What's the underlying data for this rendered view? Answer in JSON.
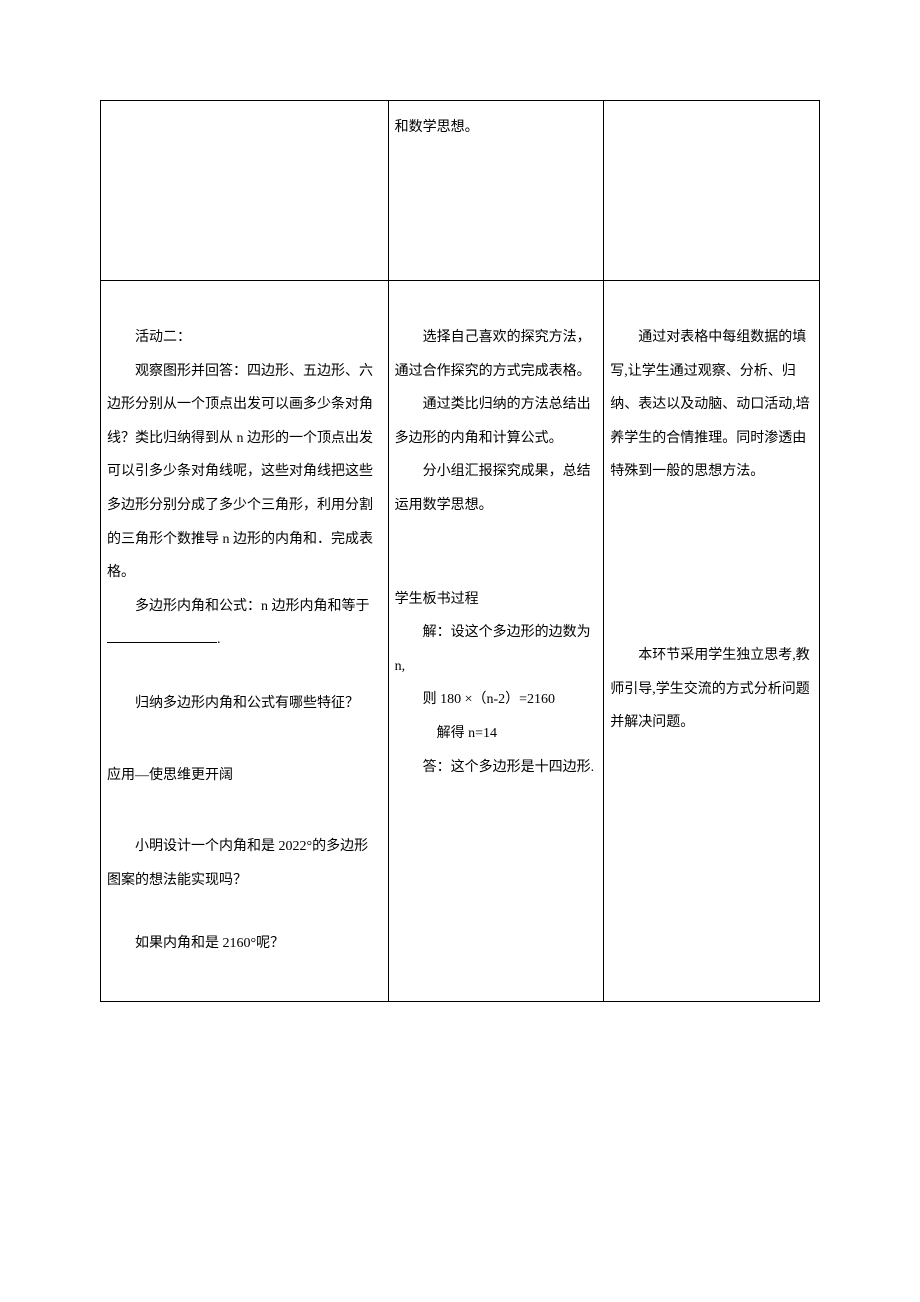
{
  "row1": {
    "col2": "和数学思想。"
  },
  "row2": {
    "col1": {
      "activity_title": "活动二：",
      "p1": "观察图形并回答：四边形、五边形、六边形分别从一个顶点出发可以画多少条对角线？类比归纳得到从 n 边形的一个顶点出发可以引多少条对角线呢，这些对角线把这些多边形分别分成了多少个三角形，利用分割的三角形个数推导 n 边形的内角和．完成表格。",
      "p2_prefix": "多边形内角和公式：n 边形内角和等于",
      "p2_suffix": ".",
      "p3": "归纳多边形内角和公式有哪些特征？",
      "section": "应用—使思维更开阔",
      "p4": "小明设计一个内角和是 2022°的多边形图案的想法能实现吗？",
      "p5": "如果内角和是 2160°呢？"
    },
    "col2": {
      "p1": "选择自己喜欢的探究方法，通过合作探究的方式完成表格。",
      "p2": "通过类比归纳的方法总结出多边形的内角和计算公式。",
      "p3": "分小组汇报探究成果，总结运用数学思想。",
      "p4": "学生板书过程",
      "p5": "解：设这个多边形的边数为 n,",
      "p6": "则 180 ×（n-2）=2160",
      "p7": "解得    n=14",
      "p8": "答：这个多边形是十四边形."
    },
    "col3": {
      "p1": "通过对表格中每组数据的填写,让学生通过观察、分析、归纳、表达以及动脑、动口活动,培养学生的合情推理。同时渗透由特殊到一般的思想方法。",
      "p2": "本环节采用学生独立思考,教师引导,学生交流的方式分析问题并解决问题。"
    }
  }
}
